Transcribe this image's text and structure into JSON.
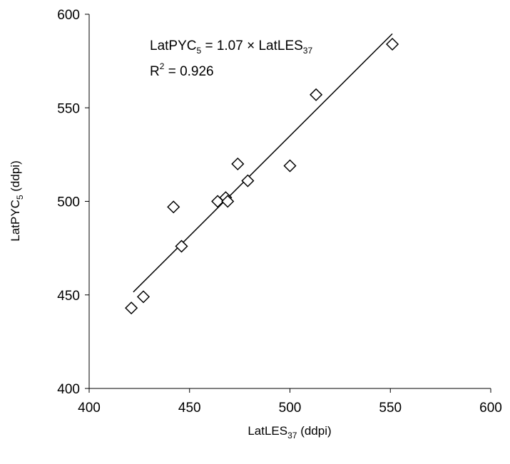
{
  "chart_data": {
    "type": "scatter",
    "x_axis": {
      "label": "LatLES",
      "label_subscript": "37",
      "label_suffix": " (ddpi)",
      "range": [
        400,
        600
      ],
      "ticks": [
        400,
        450,
        500,
        550,
        600
      ]
    },
    "y_axis": {
      "label": "LatPYC",
      "label_subscript": "5",
      "label_suffix": " (ddpi)",
      "range": [
        400,
        600
      ],
      "ticks": [
        400,
        450,
        500,
        550,
        600
      ]
    },
    "marker": "diamond-open",
    "grid": false,
    "points": [
      {
        "x": 421,
        "y": 443
      },
      {
        "x": 427,
        "y": 449
      },
      {
        "x": 442,
        "y": 497
      },
      {
        "x": 446,
        "y": 476
      },
      {
        "x": 464,
        "y": 500
      },
      {
        "x": 468,
        "y": 502
      },
      {
        "x": 469,
        "y": 500
      },
      {
        "x": 474,
        "y": 520
      },
      {
        "x": 479,
        "y": 511
      },
      {
        "x": 500,
        "y": 519
      },
      {
        "x": 513,
        "y": 557
      },
      {
        "x": 551,
        "y": 584
      }
    ],
    "fit_line": {
      "slope": 1.07,
      "x_range": [
        422,
        551
      ]
    },
    "annotation": {
      "equation_lhs": "LatPYC",
      "equation_lhs_subscript": "5",
      "equation_middle": " = 1.07 × LatLES",
      "equation_rhs_subscript": "37",
      "r2_label": "R",
      "r2_superscript": "2",
      "r2_value": " = 0.926"
    }
  }
}
